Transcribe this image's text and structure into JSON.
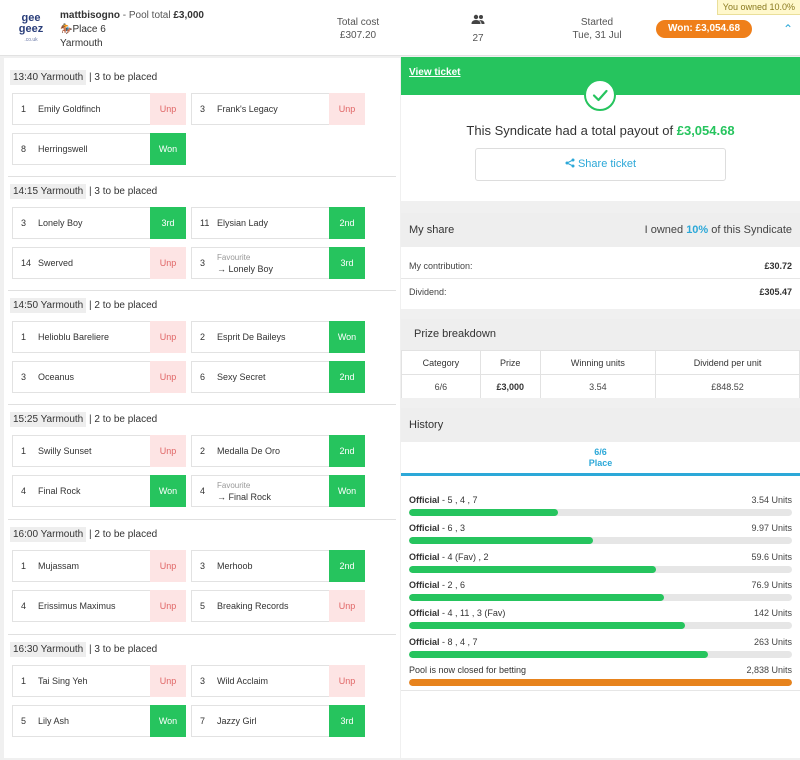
{
  "header": {
    "owned_tag": "You owned 10.0%",
    "logo": {
      "line1": "gee",
      "line2": "geez",
      "line3": ".co.uk"
    },
    "user": "mattbisogno",
    "pool_prefix": " - Pool total ",
    "pool_total": "£3,000",
    "bet_type": "Place 6",
    "venue": "Yarmouth",
    "total_cost_label": "Total cost",
    "total_cost": "£307.20",
    "entries": "27",
    "started_label": "Started",
    "started": "Tue, 31 Jul",
    "won_label": "Won: £3,054.68"
  },
  "races": [
    {
      "time": "13:40 Yarmouth",
      "placed": "3 to be placed",
      "sels": [
        {
          "num": "1",
          "name": "Emily Goldfinch",
          "res": "Unp"
        },
        {
          "num": "3",
          "name": "Frank's Legacy",
          "res": "Unp"
        },
        {
          "num": "8",
          "name": "Herringswell",
          "res": "Won"
        }
      ]
    },
    {
      "time": "14:15 Yarmouth",
      "placed": "3 to be placed",
      "sels": [
        {
          "num": "3",
          "name": "Lonely Boy",
          "res": "3rd"
        },
        {
          "num": "11",
          "name": "Elysian Lady",
          "res": "2nd"
        },
        {
          "num": "14",
          "name": "Swerved",
          "res": "Unp"
        },
        {
          "num": "3",
          "fav": "Favourite",
          "name": "Lonely Boy",
          "res": "3rd"
        }
      ]
    },
    {
      "time": "14:50 Yarmouth",
      "placed": "2 to be placed",
      "sels": [
        {
          "num": "1",
          "name": "Helioblu Bareliere",
          "res": "Unp"
        },
        {
          "num": "2",
          "name": "Esprit De Baileys",
          "res": "Won"
        },
        {
          "num": "3",
          "name": "Oceanus",
          "res": "Unp"
        },
        {
          "num": "6",
          "name": "Sexy Secret",
          "res": "2nd"
        }
      ]
    },
    {
      "time": "15:25 Yarmouth",
      "placed": "2 to be placed",
      "sels": [
        {
          "num": "1",
          "name": "Swilly Sunset",
          "res": "Unp"
        },
        {
          "num": "2",
          "name": "Medalla De Oro",
          "res": "2nd"
        },
        {
          "num": "4",
          "name": "Final Rock",
          "res": "Won"
        },
        {
          "num": "4",
          "fav": "Favourite",
          "name": "Final Rock",
          "res": "Won"
        }
      ]
    },
    {
      "time": "16:00 Yarmouth",
      "placed": "2 to be placed",
      "sels": [
        {
          "num": "1",
          "name": "Mujassam",
          "res": "Unp"
        },
        {
          "num": "3",
          "name": "Merhoob",
          "res": "2nd"
        },
        {
          "num": "4",
          "name": "Erissimus Maximus",
          "res": "Unp"
        },
        {
          "num": "5",
          "name": "Breaking Records",
          "res": "Unp"
        }
      ]
    },
    {
      "time": "16:30 Yarmouth",
      "placed": "3 to be placed",
      "sels": [
        {
          "num": "1",
          "name": "Tai Sing Yeh",
          "res": "Unp"
        },
        {
          "num": "3",
          "name": "Wild Acclaim",
          "res": "Unp"
        },
        {
          "num": "5",
          "name": "Lily Ash",
          "res": "Won"
        },
        {
          "num": "7",
          "name": "Jazzy Girl",
          "res": "3rd"
        }
      ]
    }
  ],
  "ticket": {
    "view_label": "View ticket",
    "payout_text": "This Syndicate had a total payout of ",
    "payout_amount": "£3,054.68",
    "share_label": "Share ticket"
  },
  "my_share": {
    "title": "My share",
    "owned_pre": "I owned ",
    "owned_pct": "10%",
    "owned_post": " of this Syndicate",
    "contribution_label": "My contribution:",
    "contribution": "£30.72",
    "dividend_label": "Dividend:",
    "dividend": "£305.47"
  },
  "prize": {
    "title": "Prize breakdown",
    "headers": [
      "Category",
      "Prize",
      "Winning units",
      "Dividend per unit"
    ],
    "row": [
      "6/6",
      "£3,000",
      "3.54",
      "£848.52"
    ]
  },
  "history": {
    "title": "History",
    "tab_line1": "6/6",
    "tab_line2": "Place",
    "rows": [
      {
        "label": "Official",
        "nums": " - 5 ,  4 ,  7",
        "units": "3.54 Units",
        "fill": 0.39
      },
      {
        "label": "Official",
        "nums": " - 6 ,  3",
        "units": "9.97 Units",
        "fill": 0.48
      },
      {
        "label": "Official",
        "nums": " - 4  (Fav) ,  2",
        "units": "59.6 Units",
        "fill": 0.645
      },
      {
        "label": "Official",
        "nums": " - 2 ,  6",
        "units": "76.9 Units",
        "fill": 0.665
      },
      {
        "label": "Official",
        "nums": " - 4 ,  11 ,  3  (Fav)",
        "units": "142 Units",
        "fill": 0.72
      },
      {
        "label": "Official",
        "nums": " - 8 ,  4 ,  7",
        "units": "263 Units",
        "fill": 0.78
      }
    ],
    "closed_label": "Pool is now closed for betting",
    "closed_units": "2,838 Units",
    "closed_fill": 1.0
  },
  "colors": {
    "green": "#26c45e",
    "orange": "#ef7f1a",
    "blue": "#2ca8d8",
    "unp_bg": "#fde4e4"
  }
}
